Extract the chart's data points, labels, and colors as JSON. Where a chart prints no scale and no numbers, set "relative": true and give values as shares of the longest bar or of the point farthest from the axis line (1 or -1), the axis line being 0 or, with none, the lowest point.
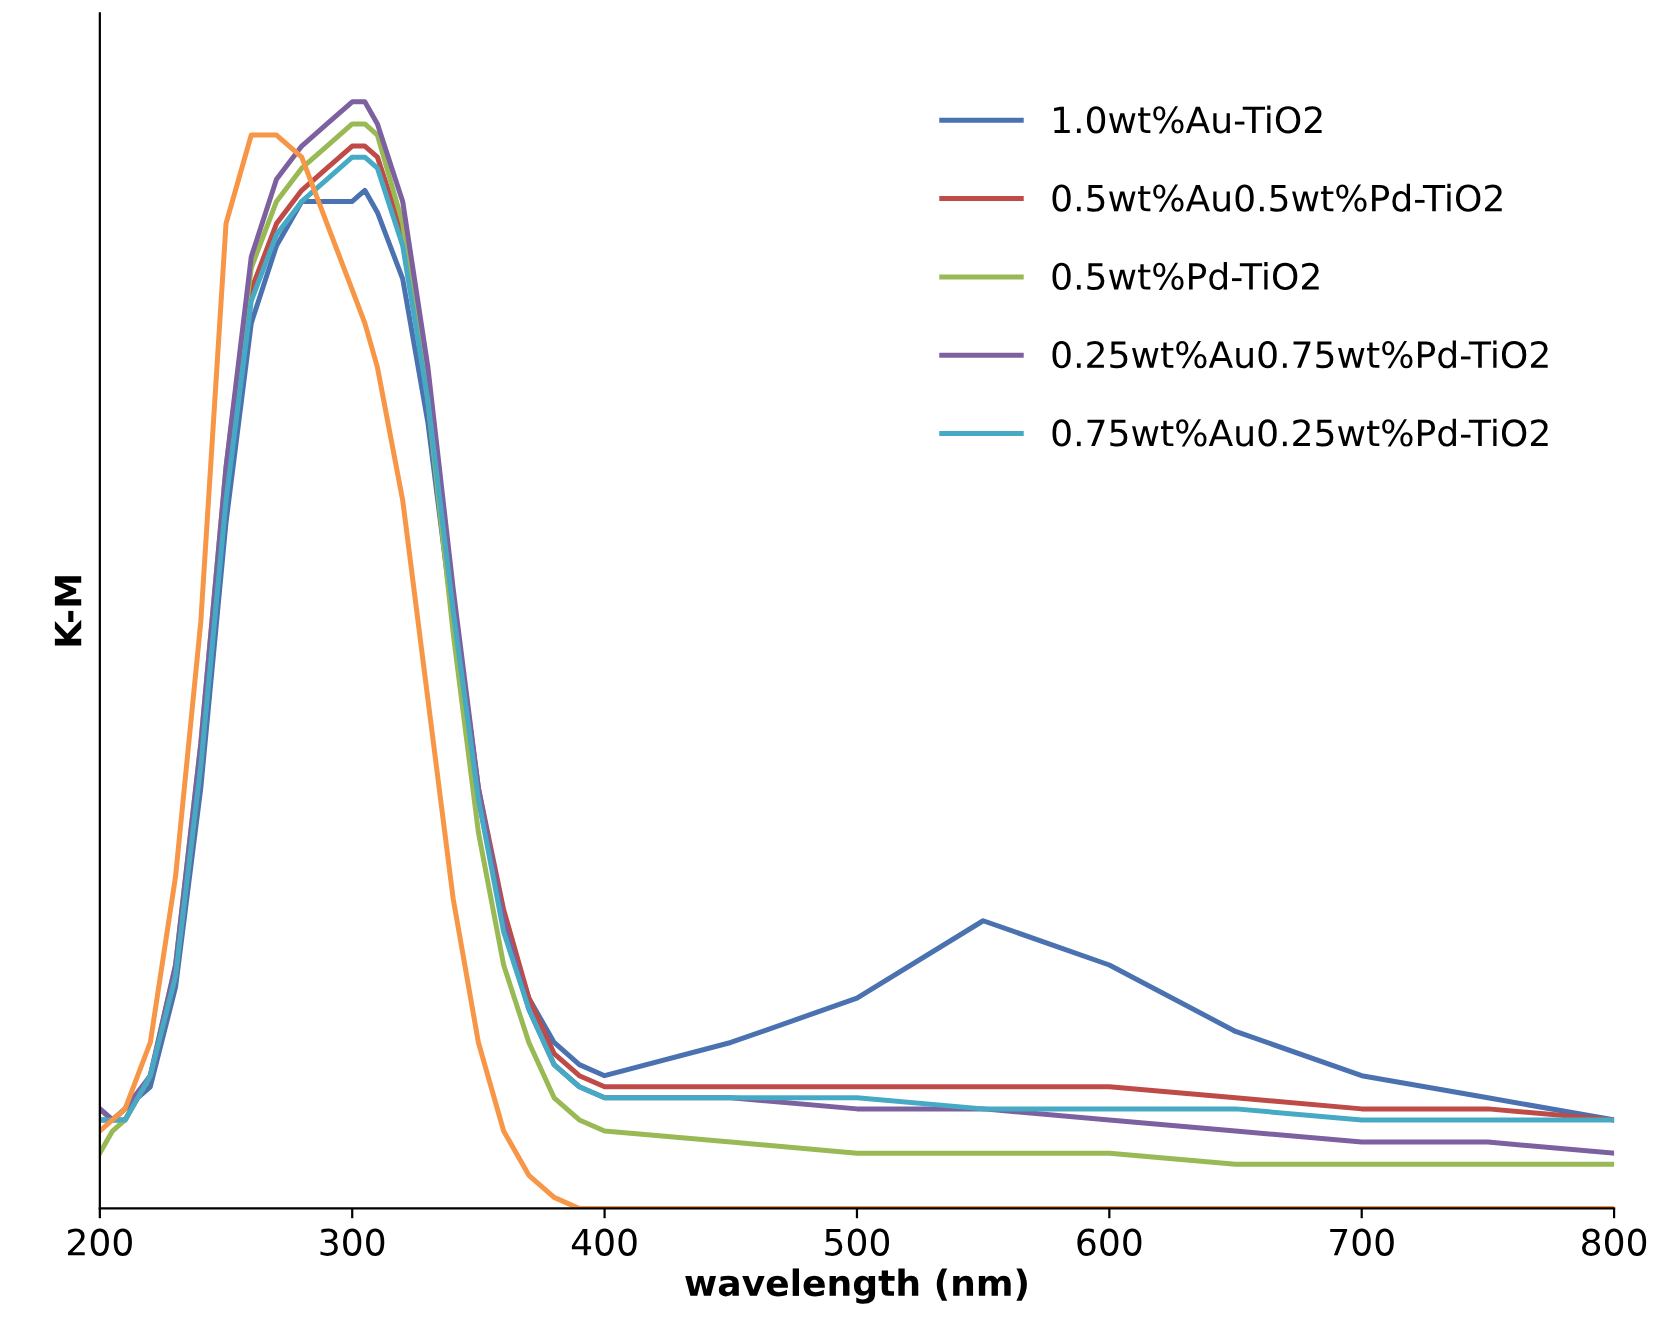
{
  "chart_data": {
    "type": "line",
    "relative": true,
    "xlabel": "wavelength (nm)",
    "ylabel": "K-M",
    "x": [
      200,
      205,
      210,
      220,
      230,
      240,
      250,
      260,
      270,
      280,
      290,
      300,
      305,
      310,
      320,
      330,
      340,
      350,
      360,
      370,
      380,
      390,
      400,
      450,
      500,
      550,
      600,
      650,
      700,
      750,
      800
    ],
    "xlim": [
      200,
      800
    ],
    "xticks": [
      200,
      300,
      400,
      500,
      600,
      700,
      800
    ],
    "grid": false,
    "legend": "top right",
    "marker": "none",
    "line_style": "solid",
    "series": [
      {
        "name": "1.0wt%Au-TiO2",
        "color": "#4a72b0",
        "values": [
          0.09,
          0.08,
          0.09,
          0.11,
          0.2,
          0.38,
          0.62,
          0.8,
          0.87,
          0.91,
          0.91,
          0.91,
          0.92,
          0.9,
          0.84,
          0.71,
          0.53,
          0.37,
          0.26,
          0.19,
          0.15,
          0.13,
          0.12,
          0.15,
          0.19,
          0.26,
          0.22,
          0.16,
          0.12,
          0.1,
          0.08
        ]
      },
      {
        "name": "0.5wt%Au0.5wt%Pd-TiO2",
        "color": "#be4b48",
        "values": [
          0.08,
          0.08,
          0.08,
          0.12,
          0.21,
          0.4,
          0.65,
          0.83,
          0.89,
          0.92,
          0.94,
          0.96,
          0.96,
          0.95,
          0.88,
          0.74,
          0.55,
          0.38,
          0.27,
          0.19,
          0.14,
          0.12,
          0.11,
          0.11,
          0.11,
          0.11,
          0.11,
          0.1,
          0.09,
          0.09,
          0.08
        ]
      },
      {
        "name": "0.5wt%Pd-TiO2",
        "color": "#98b954",
        "values": [
          0.05,
          0.07,
          0.08,
          0.12,
          0.22,
          0.42,
          0.67,
          0.85,
          0.91,
          0.94,
          0.96,
          0.98,
          0.98,
          0.97,
          0.89,
          0.73,
          0.52,
          0.34,
          0.22,
          0.15,
          0.1,
          0.08,
          0.07,
          0.06,
          0.05,
          0.05,
          0.05,
          0.04,
          0.04,
          0.04,
          0.04
        ]
      },
      {
        "name": "0.25wt%Au0.75wt%Pd-TiO2",
        "color": "#7d60a0",
        "values": [
          0.09,
          0.08,
          0.09,
          0.12,
          0.22,
          0.42,
          0.67,
          0.86,
          0.93,
          0.96,
          0.98,
          1.0,
          1.0,
          0.98,
          0.91,
          0.76,
          0.56,
          0.38,
          0.26,
          0.18,
          0.13,
          0.11,
          0.1,
          0.1,
          0.09,
          0.09,
          0.08,
          0.07,
          0.06,
          0.06,
          0.05
        ]
      },
      {
        "name": "0.75wt%Au0.25wt%Pd-TiO2",
        "color": "#46aac5",
        "values": [
          0.08,
          0.08,
          0.08,
          0.12,
          0.21,
          0.4,
          0.64,
          0.82,
          0.88,
          0.91,
          0.93,
          0.95,
          0.95,
          0.94,
          0.87,
          0.73,
          0.54,
          0.37,
          0.25,
          0.18,
          0.13,
          0.11,
          0.1,
          0.1,
          0.1,
          0.09,
          0.09,
          0.09,
          0.08,
          0.08,
          0.08
        ]
      },
      {
        "color": "#f79646",
        "values": [
          0.07,
          0.08,
          0.09,
          0.15,
          0.3,
          0.53,
          0.89,
          0.97,
          0.97,
          0.95,
          0.89,
          0.83,
          0.8,
          0.76,
          0.64,
          0.46,
          0.28,
          0.15,
          0.07,
          0.03,
          0.01,
          0.0,
          0.0,
          0.0,
          0.0,
          0.0,
          0.0,
          0.0,
          0.0,
          0.0,
          0.0
        ]
      }
    ]
  }
}
